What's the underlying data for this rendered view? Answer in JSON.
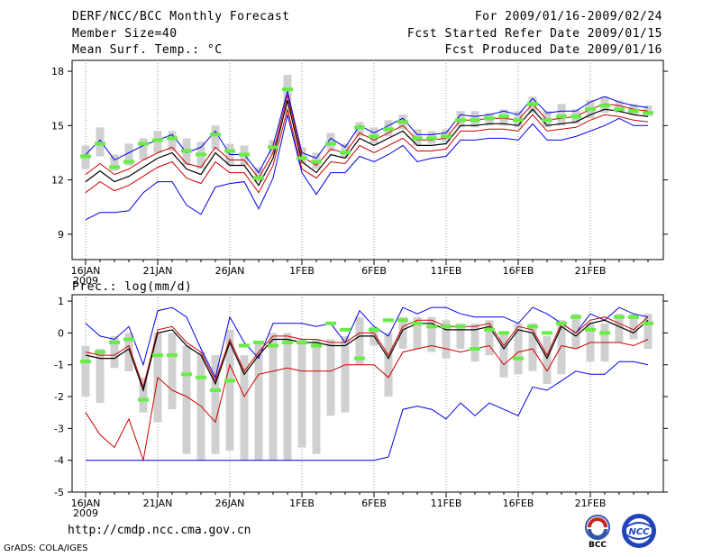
{
  "header": {
    "title": "DERF/NCC/BCC Monthly Forecast",
    "member_size": "Member Size=40",
    "period": "For 2009/01/16-2009/02/24",
    "fcst_started": "Fcst Started Refer Date 2009/01/15",
    "fcst_produced": "Fcst Produced Date 2009/01/16"
  },
  "footer": {
    "url": "http://cmdp.ncc.cma.gov.cn",
    "grads": "GrADS: COLA/IGES",
    "logo_left_text": "BCC",
    "logo_right_text": "NCC"
  },
  "colors": {
    "ensemble_box": "#d0d0d0",
    "median_bar": "#66ee44",
    "mean_line": "#000000",
    "spread_line": "#cc0000",
    "envelope_line": "#0000ee",
    "observed": "#333333"
  },
  "chart_data": [
    {
      "type": "line",
      "title": "Mean Surf. Temp.: °C",
      "yticks": [
        9,
        12,
        15,
        18
      ],
      "ylim": [
        7.6,
        18.6
      ],
      "xticks": [
        "16JAN",
        "21JAN",
        "26JAN",
        "1FEB",
        "6FEB",
        "11FEB",
        "16FEB",
        "21FEB"
      ],
      "xtick_year": "2009",
      "x": [
        1,
        2,
        3,
        4,
        5,
        6,
        7,
        8,
        9,
        10,
        11,
        12,
        13,
        14,
        15,
        16,
        17,
        18,
        19,
        20,
        21,
        22,
        23,
        24,
        25,
        26,
        27,
        28,
        29,
        30,
        31,
        32,
        33,
        34,
        35,
        36,
        37,
        38,
        39,
        40
      ],
      "series": [
        {
          "name": "ensemble_max",
          "values": [
            13.4,
            14.2,
            13.1,
            13.5,
            13.9,
            14.2,
            14.5,
            13.5,
            13.8,
            14.7,
            13.4,
            13.4,
            12.4,
            13.9,
            16.9,
            13.5,
            13.2,
            14.3,
            13.8,
            15.0,
            14.6,
            15.0,
            15.4,
            14.5,
            14.5,
            14.6,
            15.6,
            15.5,
            15.6,
            15.8,
            15.6,
            16.5,
            15.7,
            15.8,
            15.8,
            16.3,
            16.6,
            16.3,
            16.1,
            16.0
          ]
        },
        {
          "name": "ensemble_min",
          "values": [
            9.8,
            10.2,
            10.2,
            10.3,
            11.3,
            11.9,
            11.9,
            10.6,
            10.1,
            11.6,
            11.8,
            11.9,
            10.4,
            12.1,
            15.6,
            12.4,
            11.2,
            12.4,
            12.4,
            13.3,
            13.0,
            13.4,
            13.9,
            13.0,
            13.2,
            13.3,
            14.2,
            14.2,
            14.3,
            14.3,
            14.2,
            15.1,
            14.2,
            14.2,
            14.4,
            14.7,
            15.0,
            15.4,
            15.0,
            15.0
          ]
        },
        {
          "name": "ensemble_mean",
          "values": [
            11.9,
            12.5,
            11.9,
            12.2,
            12.7,
            13.2,
            13.5,
            12.6,
            12.3,
            13.5,
            12.8,
            12.8,
            11.7,
            13.2,
            16.4,
            13.0,
            12.4,
            13.4,
            13.2,
            14.3,
            13.9,
            14.3,
            14.7,
            13.9,
            13.9,
            14.0,
            15.0,
            15.0,
            15.1,
            15.1,
            15.0,
            15.9,
            15.0,
            15.1,
            15.2,
            15.6,
            15.9,
            15.8,
            15.6,
            15.5
          ]
        },
        {
          "name": "spread_upper",
          "values": [
            12.3,
            12.9,
            12.3,
            12.6,
            13.1,
            13.5,
            13.8,
            12.9,
            12.7,
            13.8,
            13.1,
            13.1,
            12.1,
            13.5,
            16.7,
            13.3,
            12.8,
            13.7,
            13.5,
            14.6,
            14.2,
            14.6,
            15.0,
            14.2,
            14.2,
            14.3,
            15.3,
            15.3,
            15.4,
            15.4,
            15.3,
            16.2,
            15.3,
            15.4,
            15.5,
            15.9,
            16.2,
            16.1,
            15.9,
            15.8
          ]
        },
        {
          "name": "spread_lower",
          "values": [
            11.3,
            11.9,
            11.4,
            11.7,
            12.2,
            12.7,
            13.0,
            12.1,
            11.8,
            13.0,
            12.4,
            12.4,
            11.3,
            12.8,
            15.9,
            12.6,
            12.1,
            13.0,
            12.9,
            13.9,
            13.5,
            13.9,
            14.3,
            13.6,
            13.6,
            13.7,
            14.7,
            14.7,
            14.8,
            14.8,
            14.7,
            15.6,
            14.7,
            14.8,
            14.9,
            15.3,
            15.6,
            15.5,
            15.3,
            15.2
          ]
        },
        {
          "name": "box_top",
          "values": [
            13.9,
            14.9,
            13.4,
            14.0,
            14.3,
            14.7,
            14.7,
            14.3,
            14.1,
            15.0,
            14.0,
            13.9,
            12.7,
            14.2,
            17.8,
            13.8,
            13.5,
            14.6,
            14.0,
            15.2,
            14.9,
            15.3,
            15.6,
            14.8,
            14.7,
            14.8,
            15.8,
            15.8,
            15.7,
            15.9,
            15.8,
            16.6,
            15.8,
            16.2,
            15.9,
            16.4,
            16.6,
            16.4,
            16.2,
            16.1
          ]
        },
        {
          "name": "box_bottom",
          "values": [
            12.6,
            13.3,
            12.5,
            12.8,
            13.1,
            13.5,
            13.6,
            12.8,
            12.6,
            13.7,
            12.8,
            12.8,
            11.9,
            13.4,
            15.6,
            12.9,
            12.6,
            13.6,
            13.2,
            14.4,
            14.0,
            14.4,
            14.8,
            13.9,
            14.0,
            14.1,
            14.9,
            14.9,
            15.0,
            15.0,
            14.9,
            15.7,
            14.9,
            15.0,
            15.1,
            15.4,
            15.7,
            15.7,
            15.6,
            15.5
          ]
        },
        {
          "name": "median",
          "values": [
            13.3,
            14.0,
            12.7,
            13.0,
            14.0,
            14.2,
            14.3,
            13.6,
            13.4,
            14.5,
            13.6,
            13.4,
            12.1,
            13.8,
            17.0,
            13.2,
            13.0,
            14.0,
            13.5,
            14.9,
            14.4,
            14.8,
            15.2,
            14.3,
            14.3,
            14.4,
            15.3,
            15.3,
            15.4,
            15.5,
            15.3,
            16.2,
            15.3,
            15.5,
            15.5,
            15.9,
            16.1,
            15.9,
            15.8,
            15.7
          ]
        }
      ]
    },
    {
      "type": "line",
      "title": "Prec.: log(mm/d)",
      "yticks": [
        -5,
        -4,
        -3,
        -2,
        -1,
        0,
        1
      ],
      "ylim": [
        -5,
        1.2
      ],
      "xticks": [
        "16JAN",
        "21JAN",
        "26JAN",
        "1FEB",
        "6FEB",
        "11FEB",
        "16FEB",
        "21FEB"
      ],
      "xtick_year": "2009",
      "x": [
        1,
        2,
        3,
        4,
        5,
        6,
        7,
        8,
        9,
        10,
        11,
        12,
        13,
        14,
        15,
        16,
        17,
        18,
        19,
        20,
        21,
        22,
        23,
        24,
        25,
        26,
        27,
        28,
        29,
        30,
        31,
        32,
        33,
        34,
        35,
        36,
        37,
        38,
        39,
        40
      ],
      "series": [
        {
          "name": "ensemble_max",
          "values": [
            0.3,
            -0.1,
            -0.2,
            0.2,
            -1.0,
            0.7,
            0.8,
            0.5,
            -0.5,
            -1.4,
            0.5,
            -0.3,
            -0.8,
            0.3,
            0.3,
            0.3,
            0.2,
            0.3,
            -0.3,
            0.7,
            0.2,
            -0.1,
            0.8,
            0.6,
            0.8,
            0.8,
            0.6,
            0.5,
            0.5,
            0.5,
            0.3,
            0.8,
            0.6,
            0.3,
            0.0,
            0.6,
            0.4,
            0.8,
            0.6,
            0.5
          ]
        },
        {
          "name": "ensemble_min",
          "values": [
            -4.0,
            -4.0,
            -4.0,
            -4.0,
            -4.0,
            -4.0,
            -4.0,
            -4.0,
            -4.0,
            -4.0,
            -4.0,
            -4.0,
            -4.0,
            -4.0,
            -4.0,
            -4.0,
            -4.0,
            -4.0,
            -4.0,
            -4.0,
            -4.0,
            -3.9,
            -2.4,
            -2.3,
            -2.4,
            -2.7,
            -2.2,
            -2.6,
            -2.2,
            -2.4,
            -2.6,
            -1.7,
            -1.8,
            -1.5,
            -1.2,
            -1.3,
            -1.3,
            -0.9,
            -0.9,
            -1.0
          ]
        },
        {
          "name": "ensemble_mean",
          "values": [
            -0.7,
            -0.8,
            -0.8,
            -0.5,
            -1.8,
            0.0,
            0.1,
            -0.4,
            -0.7,
            -1.6,
            -0.3,
            -1.3,
            -0.7,
            -0.2,
            -0.2,
            -0.3,
            -0.3,
            -0.4,
            -0.4,
            -0.1,
            -0.1,
            -0.8,
            0.1,
            0.3,
            0.3,
            0.1,
            0.1,
            0.1,
            0.2,
            -0.5,
            0.1,
            0.0,
            -0.8,
            0.2,
            -0.1,
            0.3,
            0.4,
            0.2,
            0.0,
            0.4
          ]
        },
        {
          "name": "spread_upper",
          "values": [
            -0.6,
            -0.7,
            -0.7,
            -0.4,
            -1.7,
            0.1,
            0.2,
            -0.3,
            -0.6,
            -1.5,
            -0.2,
            -1.2,
            -0.6,
            -0.1,
            -0.1,
            -0.2,
            -0.2,
            -0.3,
            -0.3,
            0.0,
            0.0,
            -0.7,
            0.2,
            0.4,
            0.4,
            0.2,
            0.2,
            0.2,
            0.3,
            -0.4,
            0.2,
            0.1,
            -0.7,
            0.3,
            0.0,
            0.4,
            0.5,
            0.3,
            0.1,
            0.5
          ]
        },
        {
          "name": "spread_lower",
          "values": [
            -2.5,
            -3.2,
            -3.6,
            -2.7,
            -4.0,
            -1.4,
            -1.8,
            -2.0,
            -2.3,
            -2.8,
            -1.0,
            -2.0,
            -1.3,
            -1.2,
            -1.1,
            -1.2,
            -1.2,
            -1.2,
            -1.0,
            -1.0,
            -1.0,
            -1.4,
            -0.6,
            -0.5,
            -0.4,
            -0.5,
            -0.6,
            -0.5,
            -0.4,
            -1.0,
            -0.6,
            -0.5,
            -1.2,
            -0.4,
            -0.5,
            -0.3,
            -0.3,
            -0.3,
            -0.4,
            -0.2
          ]
        },
        {
          "name": "box_top",
          "values": [
            -0.4,
            -0.5,
            -0.1,
            0.0,
            -1.4,
            0.0,
            0.0,
            -0.4,
            -0.6,
            -0.7,
            0.1,
            -0.7,
            -0.3,
            0.0,
            0.0,
            -0.2,
            -0.2,
            -0.2,
            -0.1,
            0.5,
            0.2,
            0.0,
            0.5,
            0.5,
            0.5,
            0.4,
            0.3,
            0.3,
            0.4,
            0.0,
            0.3,
            0.3,
            -0.1,
            0.4,
            0.6,
            0.3,
            0.3,
            0.6,
            0.6,
            0.6
          ]
        },
        {
          "name": "box_bottom",
          "values": [
            -2.0,
            -2.2,
            -1.1,
            -1.2,
            -2.5,
            -2.8,
            -2.4,
            -3.8,
            -4.0,
            -3.8,
            -3.7,
            -4.0,
            -4.0,
            -4.0,
            -4.0,
            -3.6,
            -3.8,
            -2.6,
            -2.5,
            -1.0,
            -0.4,
            -2.0,
            -0.5,
            -0.5,
            -0.6,
            -0.8,
            -0.5,
            -0.9,
            -0.7,
            -1.4,
            -1.3,
            -1.2,
            -1.6,
            -1.3,
            -0.5,
            -0.9,
            -0.9,
            -0.3,
            -0.2,
            -0.5
          ]
        },
        {
          "name": "median",
          "values": [
            -0.9,
            -0.6,
            -0.3,
            -0.2,
            -2.1,
            -0.7,
            -0.7,
            -1.3,
            -1.4,
            -1.8,
            -1.5,
            -0.4,
            -0.3,
            -0.4,
            -0.3,
            -0.3,
            -0.4,
            0.3,
            0.1,
            -0.8,
            0.1,
            0.4,
            0.4,
            0.3,
            0.2,
            0.2,
            0.2,
            -0.5,
            0.1,
            0.0,
            -0.8,
            0.2,
            0.0,
            0.3,
            0.5,
            0.1,
            0.0,
            0.5,
            0.5,
            0.3
          ]
        }
      ]
    }
  ]
}
